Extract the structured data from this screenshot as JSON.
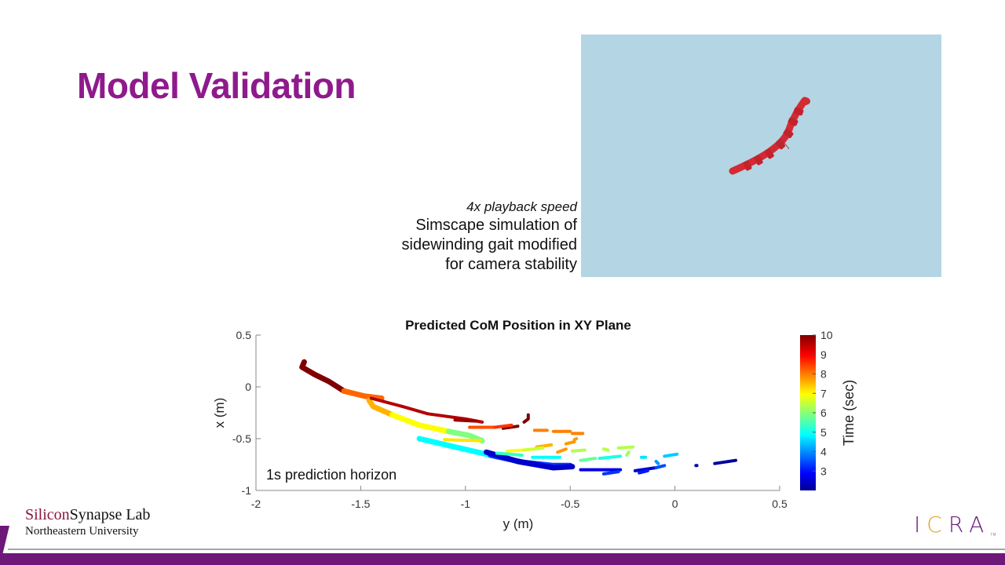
{
  "slide": {
    "title": "Model Validation",
    "caption": {
      "speed": "4x playback speed",
      "lines": [
        "Simscape simulation of",
        "sidewinding gait modified",
        "for camera stability"
      ]
    },
    "video": {
      "description": "Simscape simulation of snake robot (red) on light blue background",
      "background_color": "#b4d5e3",
      "robot_color": "#d42a33"
    },
    "footer": {
      "lab_part1": "Silicon",
      "lab_part2": "Synapse Lab",
      "university": "Northeastern University",
      "logo_prefix": "I",
      "logo_c": "C",
      "logo_suffix": "RA",
      "logo_tm": "TM"
    },
    "colors": {
      "title": "#8e1a8c",
      "band": "#6e1879",
      "icra_gold": "#e0a52b"
    }
  },
  "chart_data": {
    "type": "scatter",
    "title": "Predicted CoM Position in XY Plane",
    "xlabel": "y (m)",
    "ylabel": "x (m)",
    "xlim": [
      -2,
      0.5
    ],
    "ylim": [
      -1,
      0.5
    ],
    "xticks": [
      "-2",
      "-1.5",
      "-1",
      "-0.5",
      "0",
      "0.5"
    ],
    "yticks": [
      "-1",
      "-0.5",
      "0",
      "0.5"
    ],
    "grid": false,
    "annotation": "1s prediction horizon",
    "colorbar": {
      "label": "Time (sec)",
      "range": [
        2,
        10
      ],
      "ticks": [
        "3",
        "4",
        "5",
        "6",
        "7",
        "8",
        "9",
        "10"
      ],
      "colormap": "jet"
    },
    "series": [
      {
        "name": "main-trajectory",
        "t": 10,
        "points": [
          [
            -1.77,
            0.24
          ],
          [
            -1.78,
            0.19
          ],
          [
            -1.72,
            0.12
          ],
          [
            -1.65,
            0.05
          ],
          [
            -1.58,
            -0.04
          ]
        ]
      },
      {
        "name": "main-trajectory",
        "t": 8.2,
        "points": [
          [
            -1.58,
            -0.04
          ],
          [
            -1.48,
            -0.09
          ],
          [
            -1.4,
            -0.11
          ]
        ]
      },
      {
        "name": "main-trajectory",
        "t": 7.6,
        "points": [
          [
            -1.46,
            -0.13
          ],
          [
            -1.44,
            -0.19
          ],
          [
            -1.35,
            -0.27
          ]
        ]
      },
      {
        "name": "main-trajectory",
        "t": 7.0,
        "points": [
          [
            -1.35,
            -0.27
          ],
          [
            -1.22,
            -0.37
          ],
          [
            -1.08,
            -0.43
          ]
        ]
      },
      {
        "name": "main-trajectory",
        "t": 6.0,
        "points": [
          [
            -1.08,
            -0.43
          ],
          [
            -0.98,
            -0.47
          ],
          [
            -0.92,
            -0.52
          ]
        ]
      },
      {
        "name": "main-trajectory",
        "t": 5.0,
        "points": [
          [
            -1.22,
            -0.5
          ],
          [
            -1.05,
            -0.58
          ],
          [
            -0.92,
            -0.64
          ],
          [
            -0.88,
            -0.66
          ]
        ]
      },
      {
        "name": "main-trajectory",
        "t": 3.5,
        "points": [
          [
            -0.88,
            -0.66
          ],
          [
            -0.72,
            -0.73
          ],
          [
            -0.58,
            -0.76
          ],
          [
            -0.5,
            -0.76
          ]
        ]
      },
      {
        "name": "main-trajectory",
        "t": 2.6,
        "points": [
          [
            -0.9,
            -0.63
          ],
          [
            -0.75,
            -0.72
          ],
          [
            -0.58,
            -0.78
          ],
          [
            -0.49,
            -0.77
          ]
        ]
      },
      {
        "name": "prediction",
        "t": 9.6,
        "points": [
          [
            -1.45,
            -0.11
          ],
          [
            -1.3,
            -0.19
          ],
          [
            -1.18,
            -0.26
          ],
          [
            -1.0,
            -0.31
          ],
          [
            -0.92,
            -0.34
          ]
        ]
      },
      {
        "name": "prediction",
        "t": 9.8,
        "points": [
          [
            -1.05,
            -0.32
          ],
          [
            -0.95,
            -0.33
          ]
        ]
      },
      {
        "name": "prediction",
        "t": 10,
        "points": [
          [
            -0.82,
            -0.4
          ],
          [
            -0.75,
            -0.38
          ]
        ]
      },
      {
        "name": "prediction",
        "t": 10,
        "points": [
          [
            -0.72,
            -0.34
          ],
          [
            -0.7,
            -0.31
          ],
          [
            -0.7,
            -0.27
          ]
        ]
      },
      {
        "name": "prediction",
        "t": 8.4,
        "points": [
          [
            -0.98,
            -0.39
          ],
          [
            -0.86,
            -0.39
          ]
        ]
      },
      {
        "name": "prediction",
        "t": 8.6,
        "points": [
          [
            -0.86,
            -0.39
          ],
          [
            -0.78,
            -0.37
          ]
        ]
      },
      {
        "name": "prediction",
        "t": 8.0,
        "points": [
          [
            -0.67,
            -0.42
          ],
          [
            -0.61,
            -0.42
          ]
        ]
      },
      {
        "name": "prediction",
        "t": 8.0,
        "points": [
          [
            -0.58,
            -0.43
          ],
          [
            -0.5,
            -0.43
          ]
        ]
      },
      {
        "name": "prediction",
        "t": 8.0,
        "points": [
          [
            -0.49,
            -0.45
          ],
          [
            -0.44,
            -0.45
          ]
        ]
      },
      {
        "name": "prediction",
        "t": 7.8,
        "points": [
          [
            -0.52,
            -0.55
          ],
          [
            -0.48,
            -0.53
          ]
        ]
      },
      {
        "name": "prediction",
        "t": 7.8,
        "points": [
          [
            -0.48,
            -0.51
          ],
          [
            -0.47,
            -0.5
          ]
        ]
      },
      {
        "name": "prediction",
        "t": 7.6,
        "points": [
          [
            -0.66,
            -0.58
          ],
          [
            -0.59,
            -0.56
          ]
        ]
      },
      {
        "name": "prediction",
        "t": 7.8,
        "points": [
          [
            -0.56,
            -0.63
          ],
          [
            -0.52,
            -0.6
          ]
        ]
      },
      {
        "name": "prediction",
        "t": 7.2,
        "points": [
          [
            -1.1,
            -0.51
          ],
          [
            -0.93,
            -0.52
          ]
        ]
      },
      {
        "name": "prediction",
        "t": 7.0,
        "points": [
          [
            -0.8,
            -0.62
          ],
          [
            -0.72,
            -0.61
          ]
        ]
      },
      {
        "name": "prediction",
        "t": 6.6,
        "points": [
          [
            -0.72,
            -0.61
          ],
          [
            -0.63,
            -0.59
          ]
        ]
      },
      {
        "name": "prediction",
        "t": 6.4,
        "points": [
          [
            -0.49,
            -0.62
          ],
          [
            -0.43,
            -0.61
          ]
        ]
      },
      {
        "name": "prediction",
        "t": 6.4,
        "points": [
          [
            -0.34,
            -0.6
          ],
          [
            -0.32,
            -0.61
          ]
        ]
      },
      {
        "name": "prediction",
        "t": 6.4,
        "points": [
          [
            -0.27,
            -0.59
          ],
          [
            -0.2,
            -0.58
          ]
        ]
      },
      {
        "name": "prediction",
        "t": 6.2,
        "points": [
          [
            -0.22,
            -0.63
          ],
          [
            -0.23,
            -0.66
          ]
        ]
      },
      {
        "name": "prediction",
        "t": 5.8,
        "points": [
          [
            -0.45,
            -0.71
          ],
          [
            -0.38,
            -0.69
          ]
        ]
      },
      {
        "name": "prediction",
        "t": 5.2,
        "points": [
          [
            -0.36,
            -0.69
          ],
          [
            -0.26,
            -0.67
          ]
        ]
      },
      {
        "name": "prediction",
        "t": 5.4,
        "points": [
          [
            -0.85,
            -0.64
          ],
          [
            -0.73,
            -0.66
          ]
        ]
      },
      {
        "name": "prediction",
        "t": 5.0,
        "points": [
          [
            -0.68,
            -0.68
          ],
          [
            -0.55,
            -0.68
          ]
        ]
      },
      {
        "name": "prediction",
        "t": 4.8,
        "points": [
          [
            -0.16,
            -0.68
          ],
          [
            -0.14,
            -0.68
          ]
        ]
      },
      {
        "name": "prediction",
        "t": 4.6,
        "points": [
          [
            -0.05,
            -0.67
          ],
          [
            0.01,
            -0.65
          ]
        ]
      },
      {
        "name": "prediction",
        "t": 4.2,
        "points": [
          [
            -0.09,
            -0.72
          ],
          [
            -0.08,
            -0.74
          ]
        ]
      },
      {
        "name": "prediction",
        "t": 2.8,
        "points": [
          [
            -0.45,
            -0.8
          ],
          [
            -0.26,
            -0.8
          ]
        ]
      },
      {
        "name": "prediction",
        "t": 3.4,
        "points": [
          [
            -0.34,
            -0.84
          ],
          [
            -0.27,
            -0.82
          ]
        ]
      },
      {
        "name": "prediction",
        "t": 2.6,
        "points": [
          [
            -0.19,
            -0.81
          ],
          [
            -0.09,
            -0.78
          ]
        ]
      },
      {
        "name": "prediction",
        "t": 3.6,
        "points": [
          [
            -0.09,
            -0.78
          ],
          [
            -0.05,
            -0.76
          ]
        ]
      },
      {
        "name": "prediction",
        "t": 3.2,
        "points": [
          [
            -0.17,
            -0.83
          ],
          [
            -0.13,
            -0.81
          ]
        ]
      },
      {
        "name": "prediction",
        "t": 2.4,
        "points": [
          [
            0.1,
            -0.76
          ],
          [
            0.105,
            -0.76
          ]
        ]
      },
      {
        "name": "prediction",
        "t": 2.2,
        "points": [
          [
            0.19,
            -0.74
          ],
          [
            0.29,
            -0.71
          ]
        ]
      }
    ]
  }
}
